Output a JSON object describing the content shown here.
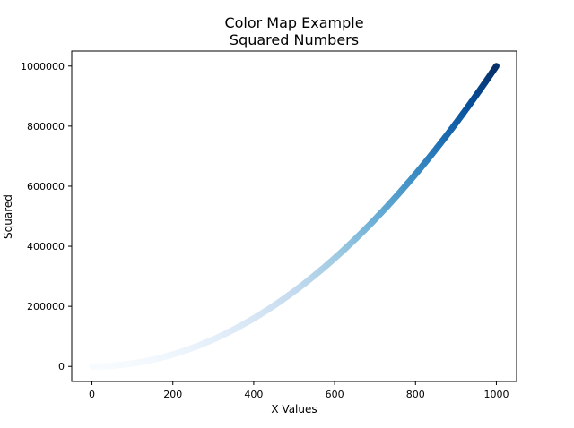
{
  "chart_data": {
    "type": "scatter",
    "title": "Color Map Example",
    "subtitle": "Squared Numbers",
    "xlabel": "X Values",
    "ylabel": "Squared",
    "xlim": [
      -50,
      1050
    ],
    "ylim": [
      -50000,
      1050000
    ],
    "x_ticks": [
      0,
      200,
      400,
      600,
      800,
      1000
    ],
    "x_tick_labels": [
      "0",
      "200",
      "400",
      "600",
      "800",
      "1000"
    ],
    "y_ticks": [
      0,
      200000,
      400000,
      600000,
      800000,
      1000000
    ],
    "y_tick_labels": [
      "0",
      "200000",
      "400000",
      "600000",
      "800000",
      "1000000"
    ],
    "series": [
      {
        "x_range": [
          1,
          1000
        ],
        "function": "y = x^2",
        "colormap": "Blues",
        "colormap_stops": [
          "#f7fbff",
          "#deebf7",
          "#c6dbef",
          "#9ecae1",
          "#6baed6",
          "#4292c6",
          "#2171b5",
          "#08519c",
          "#08306b"
        ]
      }
    ],
    "grid": false,
    "legend": "none"
  }
}
